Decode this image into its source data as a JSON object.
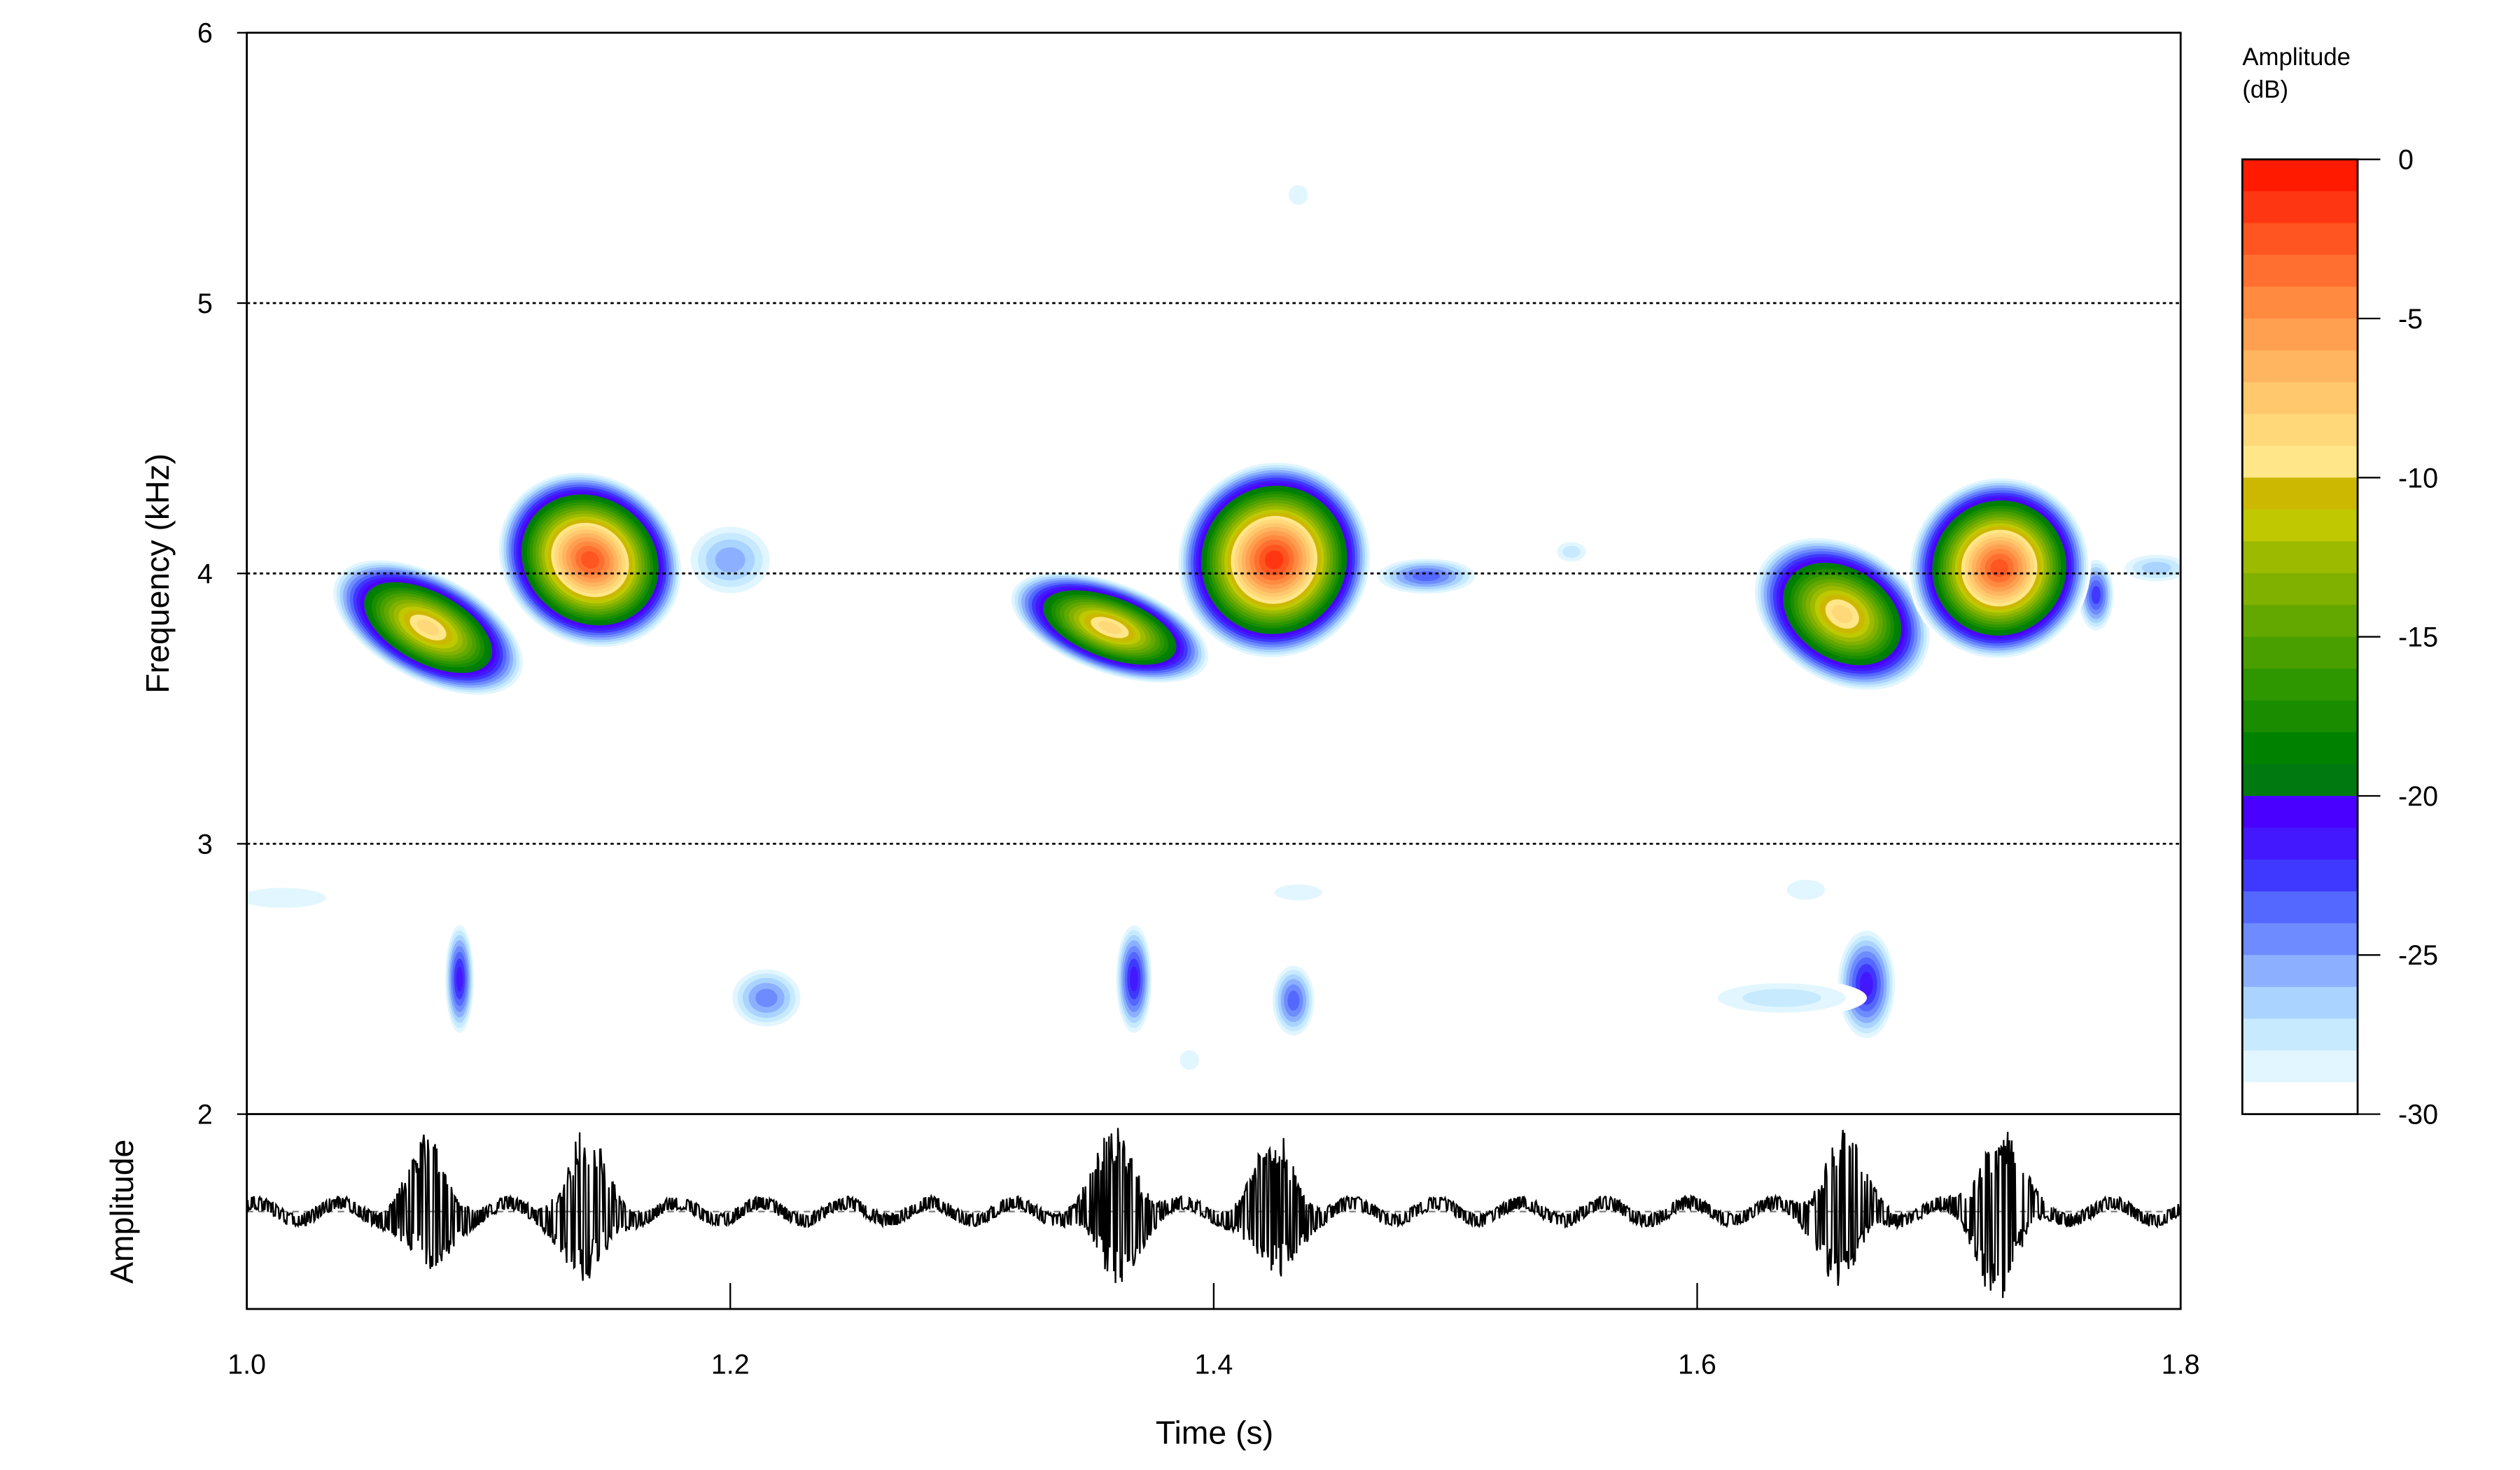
{
  "chart_data": {
    "type": "heatmap",
    "subtype": "spectrogram-with-oscillogram",
    "xlabel": "Time (s)",
    "ylabel": "Frequency (kHz)",
    "osc_label": "Amplitude",
    "xlim": [
      1.0,
      1.8
    ],
    "ylim": [
      2,
      6
    ],
    "x_ticks": [
      "1.0",
      "1.2",
      "1.4",
      "1.6",
      "1.8"
    ],
    "x_tick_values": [
      1.0,
      1.2,
      1.4,
      1.6,
      1.8
    ],
    "y_ticks": [
      "2",
      "3",
      "4",
      "5",
      "6"
    ],
    "y_tick_values": [
      2,
      3,
      4,
      5,
      6
    ],
    "gridlines_khz": [
      3,
      4,
      5
    ],
    "colorbar": {
      "title_line1": "Amplitude",
      "title_line2": "(dB)",
      "range": [
        -30,
        0
      ],
      "ticks": [
        "0",
        "-5",
        "-10",
        "-15",
        "-20",
        "-25",
        "-30"
      ],
      "tick_values": [
        0,
        -5,
        -10,
        -15,
        -20,
        -25,
        -30
      ],
      "colors_top_to_bottom": [
        "#ff1a00",
        "#ff3612",
        "#ff5520",
        "#ff7030",
        "#ff8a40",
        "#ffa050",
        "#ffb460",
        "#ffc86c",
        "#ffd87a",
        "#ffe688",
        "#ccb800",
        "#bfc800",
        "#9cbb00",
        "#80b000",
        "#62a800",
        "#4a9f00",
        "#2e9700",
        "#1a8c00",
        "#008200",
        "#007a10",
        "#4a00ff",
        "#4418ff",
        "#3f38ff",
        "#5468ff",
        "#6e8cff",
        "#8cb0ff",
        "#aad4ff",
        "#c7eaff",
        "#e2f6ff",
        "#ffffff"
      ]
    },
    "syllables": [
      {
        "t": 1.075,
        "f": 3.8,
        "peak_db": -8,
        "dt": 0.014,
        "df": 0.33,
        "tilt": -62
      },
      {
        "t": 1.142,
        "f": 4.05,
        "peak_db": -2,
        "dt": 0.022,
        "df": 0.3,
        "tilt": -55
      },
      {
        "t": 1.357,
        "f": 3.8,
        "peak_db": -8,
        "dt": 0.012,
        "df": 0.33,
        "tilt": -70
      },
      {
        "t": 1.425,
        "f": 4.05,
        "peak_db": -1,
        "dt": 0.026,
        "df": 0.3,
        "tilt": -60
      },
      {
        "t": 1.66,
        "f": 3.85,
        "peak_db": -8,
        "dt": 0.018,
        "df": 0.3,
        "tilt": -58
      },
      {
        "t": 1.725,
        "f": 4.02,
        "peak_db": -2,
        "dt": 0.024,
        "df": 0.28,
        "tilt": -55
      }
    ],
    "weak_components": [
      {
        "t": 1.088,
        "f": 2.5,
        "peak_db": -21,
        "dt": 0.004,
        "df": 0.18
      },
      {
        "t": 1.215,
        "f": 2.43,
        "peak_db": -24,
        "dt": 0.01,
        "df": 0.1
      },
      {
        "t": 1.367,
        "f": 2.5,
        "peak_db": -21,
        "dt": 0.005,
        "df": 0.18
      },
      {
        "t": 1.433,
        "f": 2.42,
        "peak_db": -23,
        "dt": 0.006,
        "df": 0.12
      },
      {
        "t": 1.67,
        "f": 2.48,
        "peak_db": -21,
        "dt": 0.008,
        "df": 0.18
      },
      {
        "t": 1.635,
        "f": 2.43,
        "peak_db": -27,
        "dt": 0.022,
        "df": 0.06
      },
      {
        "t": 1.16,
        "f": 3.95,
        "peak_db": -22,
        "dt": 0.01,
        "df": 0.1
      },
      {
        "t": 1.2,
        "f": 4.05,
        "peak_db": -25,
        "dt": 0.012,
        "df": 0.12
      },
      {
        "t": 1.488,
        "f": 3.99,
        "peak_db": -23,
        "dt": 0.014,
        "df": 0.06
      },
      {
        "t": 1.765,
        "f": 3.92,
        "peak_db": -22,
        "dt": 0.005,
        "df": 0.12
      },
      {
        "t": 1.79,
        "f": 4.02,
        "peak_db": -26,
        "dt": 0.01,
        "df": 0.05
      },
      {
        "t": 1.015,
        "f": 2.8,
        "peak_db": -28,
        "dt": 0.018,
        "df": 0.05
      },
      {
        "t": 1.435,
        "f": 2.82,
        "peak_db": -28,
        "dt": 0.01,
        "df": 0.04
      },
      {
        "t": 1.435,
        "f": 5.4,
        "peak_db": -28,
        "dt": 0.004,
        "df": 0.05
      },
      {
        "t": 1.548,
        "f": 4.08,
        "peak_db": -27,
        "dt": 0.005,
        "df": 0.04
      },
      {
        "t": 1.645,
        "f": 2.83,
        "peak_db": -28,
        "dt": 0.008,
        "df": 0.05
      },
      {
        "t": 1.39,
        "f": 2.2,
        "peak_db": -28,
        "dt": 0.004,
        "df": 0.05
      }
    ],
    "oscillogram_envelope": [
      {
        "t": 1.075,
        "amp": 0.75
      },
      {
        "t": 1.14,
        "amp": 0.85
      },
      {
        "t": 1.36,
        "amp": 0.9
      },
      {
        "t": 1.425,
        "amp": 0.85
      },
      {
        "t": 1.66,
        "amp": 0.85
      },
      {
        "t": 1.725,
        "amp": 0.95
      }
    ]
  }
}
